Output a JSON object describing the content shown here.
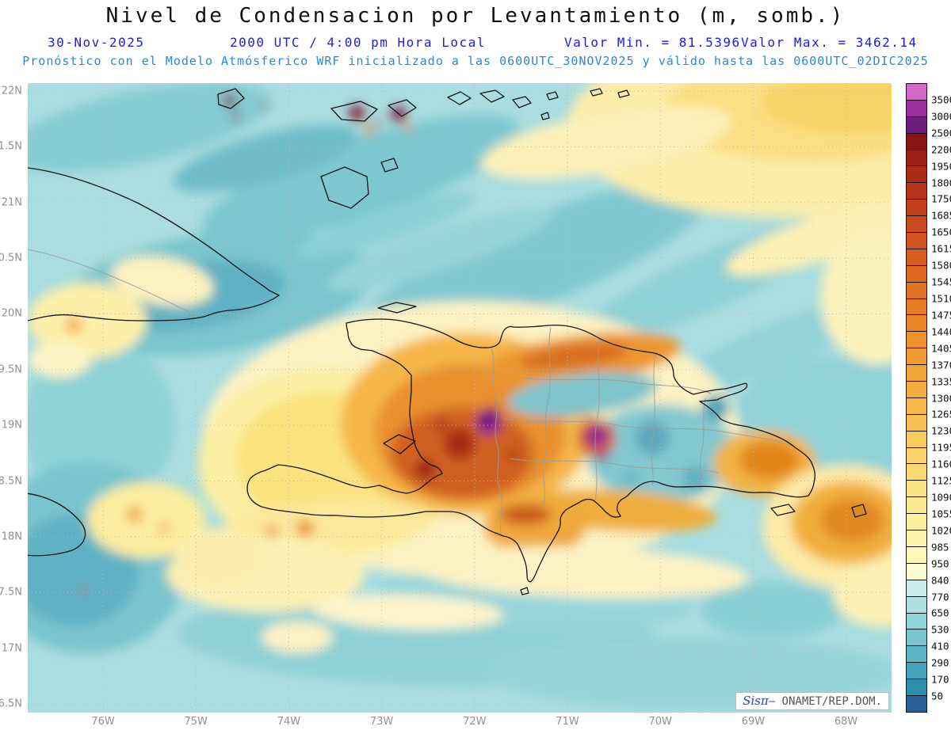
{
  "title": "Nivel de Condensacion por Levantamiento (m, somb.)",
  "header": {
    "date": "30-Nov-2025",
    "time": "2000 UTC / 4:00 pm Hora Local",
    "min_value": "Valor Min. = 81.5396",
    "max_value": "Valor Max. = 3462.14",
    "forecast": "Pronóstico con el Modelo Atmósferico WRF inicializado a las 0600UTC_30NOV2025 y válido hasta las 0600UTC_02DIC2025"
  },
  "axes": {
    "lat_labels": [
      "22N",
      "1.5N",
      "21N",
      "0.5N",
      "20N",
      "9.5N",
      "19N",
      "8.5N",
      "18N",
      "7.5N",
      "17N",
      "6.5N"
    ],
    "lon_labels": [
      "76W",
      "75W",
      "74W",
      "73W",
      "72W",
      "71W",
      "70W",
      "69W",
      "68W"
    ]
  },
  "colorbar": {
    "levels": [
      "3500",
      "3000",
      "2500",
      "2200",
      "1950",
      "1800",
      "1750",
      "1685",
      "1650",
      "1615",
      "1580",
      "1545",
      "1510",
      "1475",
      "1440",
      "1405",
      "1370",
      "1335",
      "1300",
      "1265",
      "1230",
      "1195",
      "1160",
      "1125",
      "1090",
      "1055",
      "1020",
      "985",
      "950",
      "840",
      "770",
      "650",
      "530",
      "410",
      "290",
      "170",
      "50"
    ],
    "colors": [
      "#d468c4",
      "#9d2f9d",
      "#6e1f7e",
      "#8a1513",
      "#9c2015",
      "#ab2b17",
      "#b63519",
      "#c0401b",
      "#c84a1d",
      "#cf541e",
      "#d65e1f",
      "#dc6820",
      "#e17222",
      "#e67c24",
      "#ea8627",
      "#ee902b",
      "#f19a30",
      "#f3a436",
      "#f5ae3e",
      "#f7b847",
      "#f8c151",
      "#f9ca5c",
      "#fad268",
      "#fbda74",
      "#fce181",
      "#fce88e",
      "#fdee9c",
      "#fdf3aa",
      "#fef7b9",
      "#fefbd0",
      "#c9ecea",
      "#aee0e3",
      "#93d3da",
      "#78c5d1",
      "#5cb5c7",
      "#42a3bb",
      "#2d8fae",
      "#2b5f97"
    ]
  },
  "credit": {
    "brand": "Sisπ",
    "org": "— ONAMET/REP.DOM."
  },
  "chart_data": {
    "type": "heatmap",
    "title": "Nivel de Condensacion por Levantamiento (m, somb.)",
    "units": "m",
    "value_min": 81.5396,
    "value_max": 3462.14,
    "region": {
      "lat_range": [
        "16.5N",
        "22N"
      ],
      "lon_range": [
        "76W",
        "68W"
      ]
    },
    "contour_levels": [
      50,
      170,
      290,
      410,
      530,
      650,
      770,
      840,
      950,
      985,
      1020,
      1055,
      1090,
      1125,
      1160,
      1195,
      1230,
      1265,
      1300,
      1335,
      1370,
      1405,
      1440,
      1475,
      1510,
      1545,
      1580,
      1615,
      1650,
      1685,
      1750,
      1800,
      1950,
      2200,
      2500,
      3000,
      3500
    ],
    "legend_position": "right"
  }
}
